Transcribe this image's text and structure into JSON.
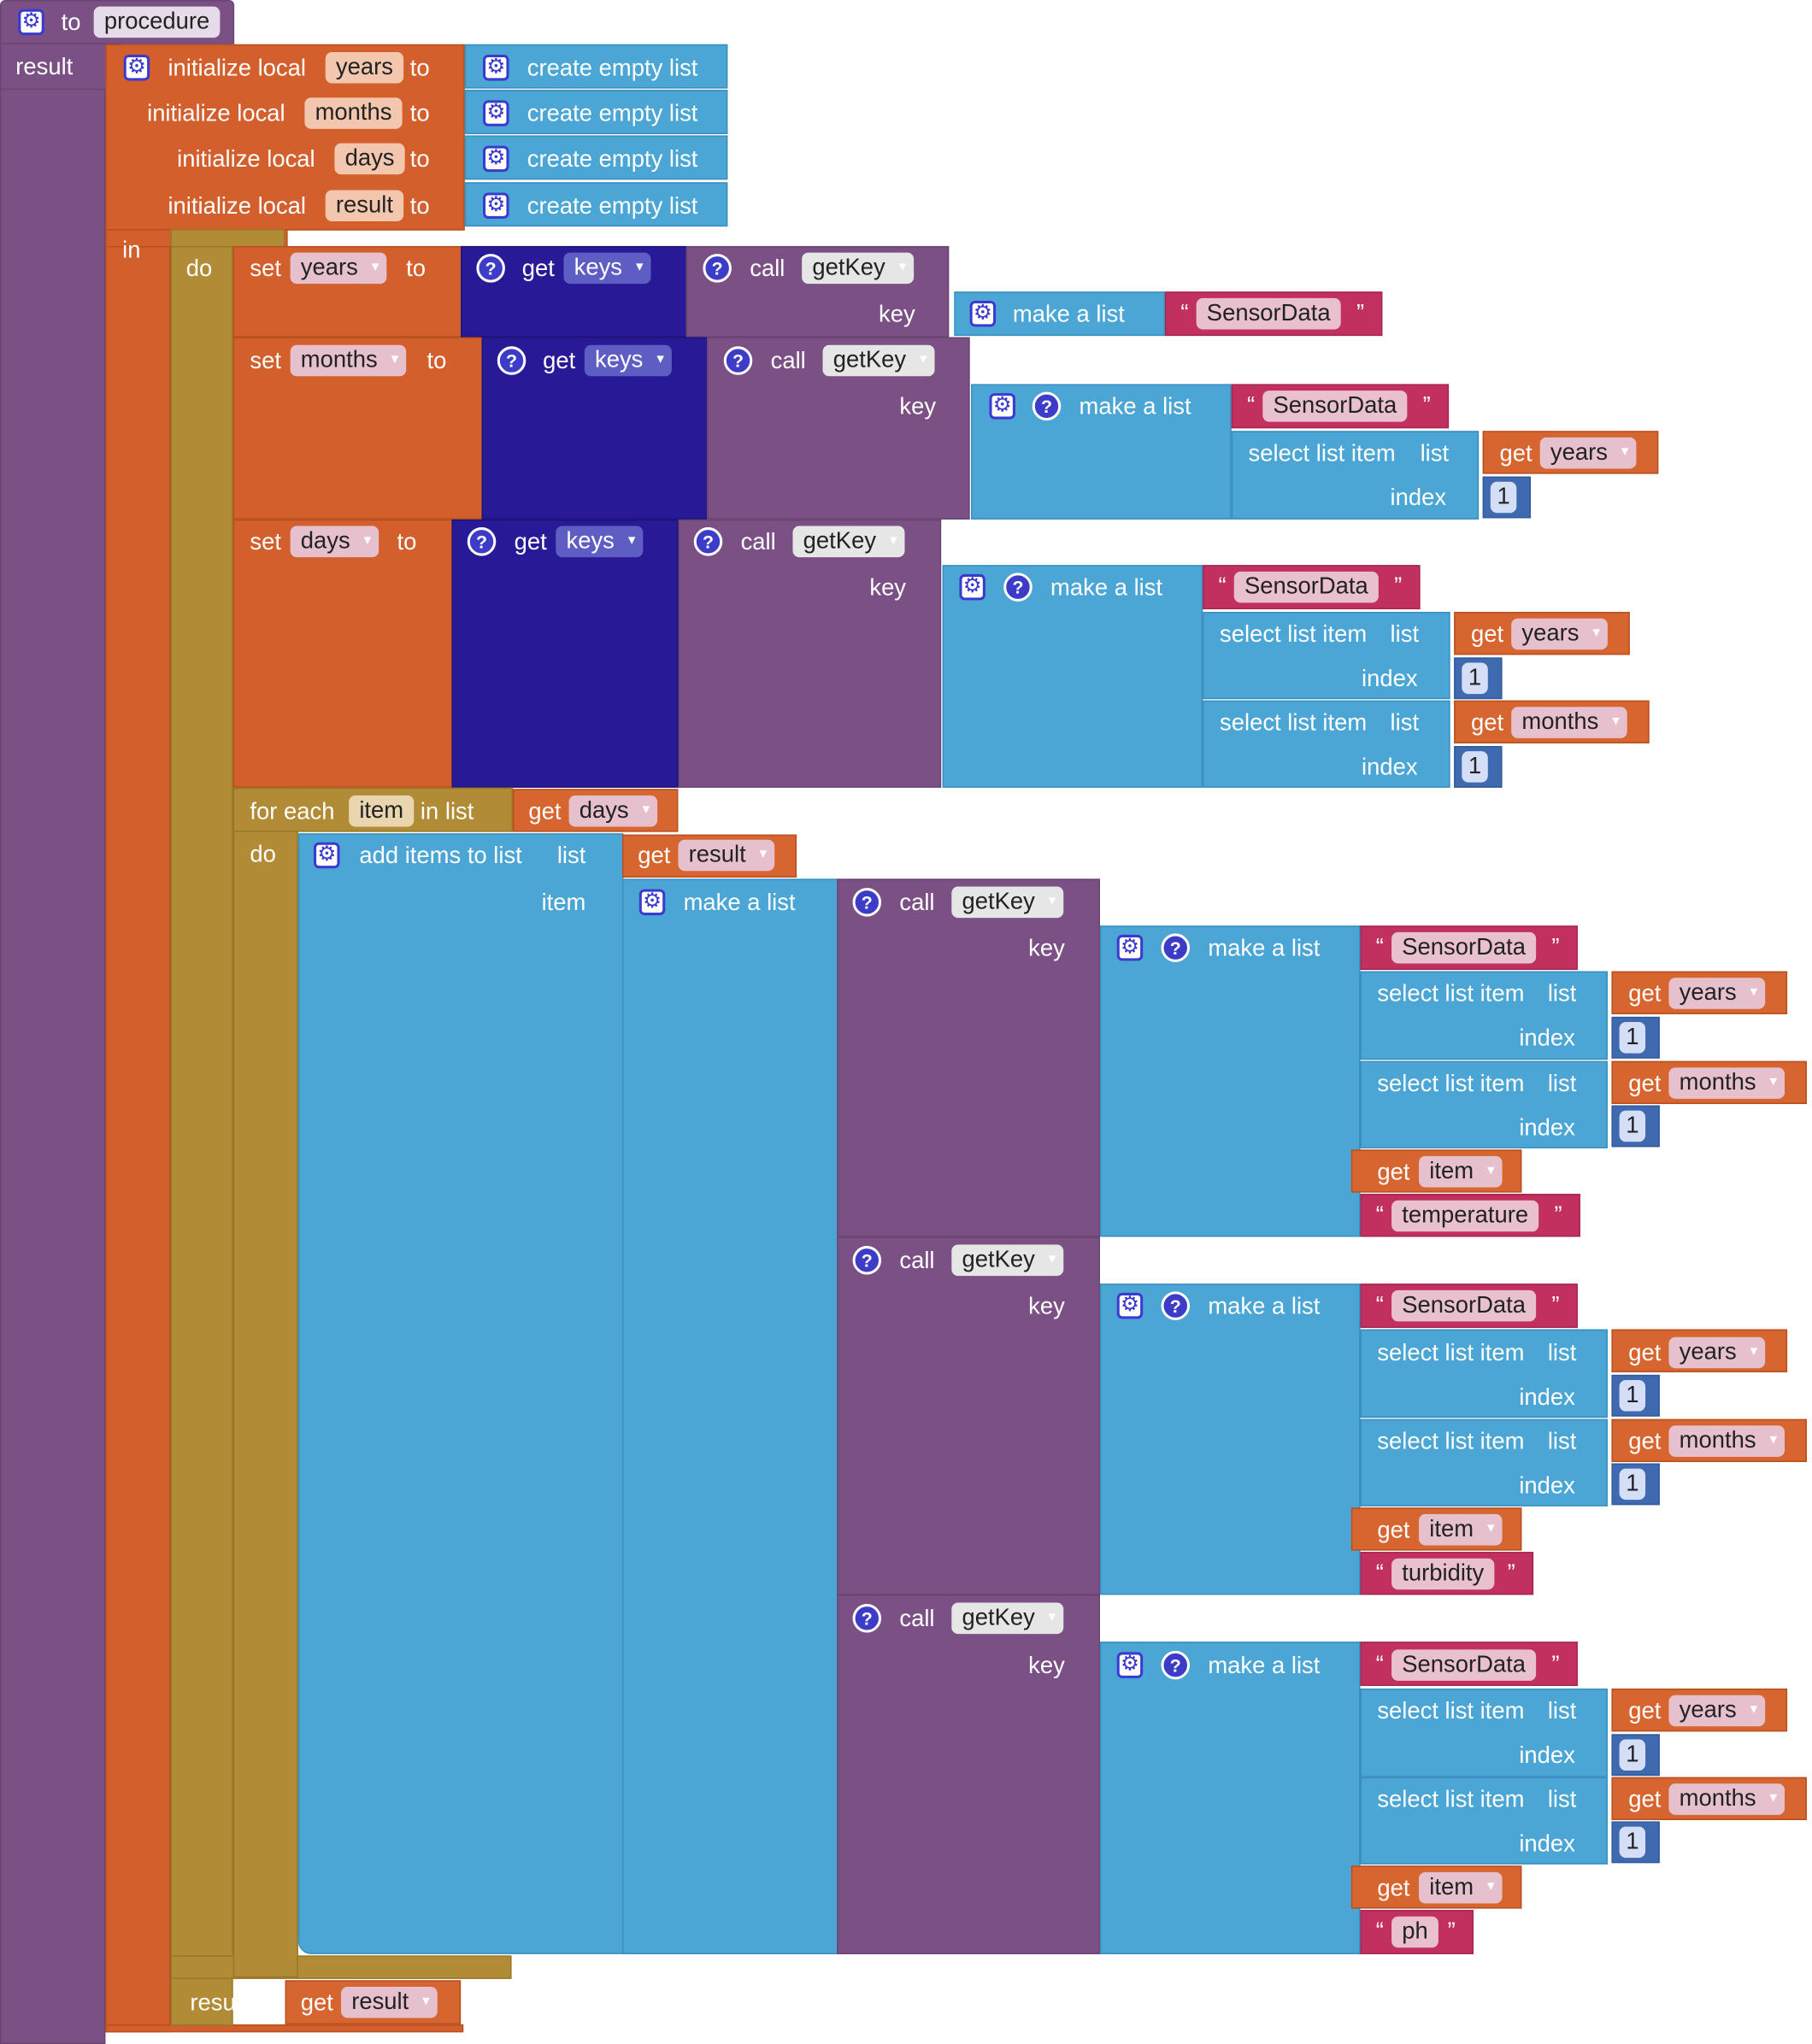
{
  "procedure": {
    "to": "to",
    "name": "procedure",
    "result": "result"
  },
  "words": {
    "init_local": "initialize local",
    "to": "to",
    "in": "in",
    "do": "do",
    "set": "set",
    "get": "get",
    "call": "call",
    "key": "key",
    "list": "list",
    "index": "index",
    "item": "item",
    "make_list": "make a list",
    "create_empty_list": "create empty list",
    "select_list_item": "select list item",
    "for_each": "for each",
    "in_list": "in list",
    "add_items": "add items to list",
    "result": "result"
  },
  "vars": {
    "years": "years",
    "months": "months",
    "days": "days",
    "result": "result",
    "keys": "keys",
    "item": "item"
  },
  "proc": {
    "getKey": "getKey"
  },
  "strings": {
    "sensor": "SensorData",
    "temperature": "temperature",
    "turbidity": "turbidity",
    "ph": "ph",
    "open_quote": "“",
    "close_quote": "”"
  },
  "numbers": {
    "one": "1"
  },
  "colors": {
    "procedure": "#7b5185",
    "variables": "#d35f2d",
    "control": "#b18b35",
    "lists": "#4ba5d5",
    "dictionaries": "#281a96",
    "text": "#c1305f",
    "math": "#3f6ab0"
  }
}
